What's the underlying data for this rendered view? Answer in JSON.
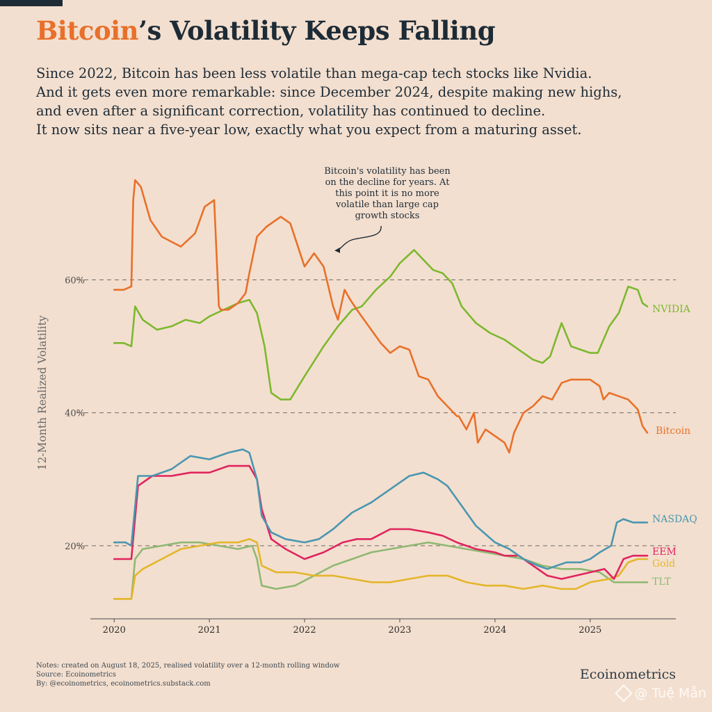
{
  "header": {
    "title_accent": "Bitcoin",
    "title_rest": "’s Volatility Keeps Falling",
    "subtitle_lines": [
      "Since 2022, Bitcoin has been less volatile than mega-cap tech stocks like Nvidia.",
      "And it gets even more remarkable: since December 2024, despite making new highs,",
      "and even after a significant correction, volatility has continued to decline.",
      "It now sits near a five-year low, exactly what you expect from a maturing asset."
    ]
  },
  "colors": {
    "background": "#f3dfcf",
    "text": "#1d2b36",
    "bitcoin": "#e8702a",
    "nvidia": "#7cb82f",
    "nasdaq": "#4a96b0",
    "eem": "#e0245e",
    "gold": "#e3b62a",
    "tlt": "#8fb873"
  },
  "chart_data": {
    "type": "line",
    "title": "",
    "xlabel": "",
    "ylabel": "12-Month Realized Volatility",
    "x_ticks": [
      "2020",
      "2021",
      "2022",
      "2023",
      "2024",
      "2025"
    ],
    "y_ticks": [
      "20%",
      "40%",
      "60%"
    ],
    "y_tick_values": [
      20,
      40,
      60
    ],
    "xlim": [
      2019.75,
      2025.9
    ],
    "ylim": [
      9,
      77
    ],
    "grid": "dashed horizontal at 20%, 40%, 60%",
    "annotation": {
      "lines": [
        "Bitcoin's volatility has been",
        "on the decline for years. At",
        "this point it is no more",
        "volatile than large cap",
        "growth stocks"
      ],
      "points_to": {
        "x": 2022.3,
        "y": 64
      }
    },
    "series": [
      {
        "name": "Bitcoin",
        "color_key": "bitcoin",
        "x": [
          2020.0,
          2020.1,
          2020.18,
          2020.2,
          2020.22,
          2020.28,
          2020.38,
          2020.5,
          2020.7,
          2020.85,
          2020.95,
          2021.05,
          2021.1,
          2021.12,
          2021.2,
          2021.3,
          2021.38,
          2021.42,
          2021.5,
          2021.6,
          2021.75,
          2021.85,
          2022.0,
          2022.1,
          2022.2,
          2022.3,
          2022.35,
          2022.42,
          2022.48,
          2022.55,
          2022.65,
          2022.8,
          2022.9,
          2023.0,
          2023.1,
          2023.2,
          2023.3,
          2023.4,
          2023.5,
          2023.6,
          2023.62,
          2023.7,
          2023.78,
          2023.82,
          2023.9,
          2024.0,
          2024.1,
          2024.15,
          2024.2,
          2024.3,
          2024.4,
          2024.5,
          2024.6,
          2024.7,
          2024.8,
          2024.9,
          2025.0,
          2025.1,
          2025.14,
          2025.2,
          2025.3,
          2025.4,
          2025.5,
          2025.55,
          2025.6
        ],
        "y": [
          58.5,
          58.5,
          59,
          72,
          75,
          74,
          69,
          66.5,
          65,
          67,
          71,
          72,
          56,
          55.5,
          55.5,
          56.5,
          58,
          61,
          66.5,
          68,
          69.5,
          68.5,
          62,
          64,
          62,
          56,
          54,
          58.5,
          57,
          55.5,
          53.5,
          50.5,
          49,
          50,
          49.5,
          45.5,
          45,
          42.5,
          41,
          39.5,
          39.5,
          37.5,
          40,
          35.5,
          37.5,
          36.5,
          35.5,
          34,
          37,
          40,
          41,
          42.5,
          42,
          44.5,
          45,
          45,
          45,
          44,
          42,
          43,
          42.5,
          42,
          40.5,
          38,
          37
        ]
      },
      {
        "name": "NVIDIA",
        "color_key": "nvidia",
        "x": [
          2020.0,
          2020.1,
          2020.18,
          2020.22,
          2020.3,
          2020.45,
          2020.6,
          2020.75,
          2020.9,
          2021.0,
          2021.15,
          2021.3,
          2021.42,
          2021.5,
          2021.58,
          2021.65,
          2021.75,
          2021.85,
          2022.0,
          2022.2,
          2022.35,
          2022.5,
          2022.6,
          2022.75,
          2022.9,
          2023.0,
          2023.15,
          2023.25,
          2023.35,
          2023.45,
          2023.55,
          2023.65,
          2023.8,
          2023.95,
          2024.1,
          2024.25,
          2024.4,
          2024.5,
          2024.58,
          2024.65,
          2024.7,
          2024.8,
          2025.0,
          2025.08,
          2025.2,
          2025.3,
          2025.4,
          2025.5,
          2025.55,
          2025.6
        ],
        "y": [
          50.5,
          50.5,
          50,
          56,
          54,
          52.5,
          53,
          54,
          53.5,
          54.5,
          55.5,
          56.5,
          57,
          55,
          50,
          43,
          42,
          42,
          45.5,
          50,
          53,
          55.5,
          56,
          58.5,
          60.5,
          62.5,
          64.5,
          63,
          61.5,
          61,
          59.5,
          56,
          53.5,
          52,
          51,
          49.5,
          48,
          47.5,
          48.5,
          51.5,
          53.5,
          50,
          49,
          49,
          53,
          55,
          59,
          58.5,
          56.5,
          56
        ]
      },
      {
        "name": "NASDAQ",
        "color_key": "nasdaq",
        "x": [
          2020.0,
          2020.12,
          2020.18,
          2020.25,
          2020.4,
          2020.6,
          2020.8,
          2021.0,
          2021.2,
          2021.35,
          2021.42,
          2021.5,
          2021.55,
          2021.65,
          2021.8,
          2022.0,
          2022.15,
          2022.3,
          2022.5,
          2022.7,
          2022.9,
          2023.1,
          2023.25,
          2023.4,
          2023.5,
          2023.65,
          2023.8,
          2024.0,
          2024.15,
          2024.3,
          2024.45,
          2024.55,
          2024.65,
          2024.75,
          2024.9,
          2025.0,
          2025.1,
          2025.22,
          2025.28,
          2025.35,
          2025.45,
          2025.6
        ],
        "y": [
          20.5,
          20.5,
          20,
          30.5,
          30.5,
          31.5,
          33.5,
          33,
          34,
          34.5,
          34,
          30,
          24.5,
          22,
          21,
          20.5,
          21,
          22.5,
          25,
          26.5,
          28.5,
          30.5,
          31,
          30,
          29,
          26,
          23,
          20.5,
          19.5,
          18,
          17,
          16.5,
          17,
          17.5,
          17.5,
          18,
          19,
          20,
          23.5,
          24,
          23.5,
          23.5
        ]
      },
      {
        "name": "EEM",
        "color_key": "eem",
        "x": [
          2020.0,
          2020.12,
          2020.18,
          2020.25,
          2020.4,
          2020.6,
          2020.8,
          2021.0,
          2021.2,
          2021.35,
          2021.42,
          2021.5,
          2021.55,
          2021.65,
          2021.8,
          2022.0,
          2022.2,
          2022.4,
          2022.55,
          2022.7,
          2022.9,
          2023.1,
          2023.3,
          2023.45,
          2023.6,
          2023.8,
          2024.0,
          2024.1,
          2024.25,
          2024.4,
          2024.55,
          2024.7,
          2024.85,
          2025.0,
          2025.15,
          2025.25,
          2025.35,
          2025.45,
          2025.6
        ],
        "y": [
          18,
          18,
          18,
          29,
          30.5,
          30.5,
          31,
          31,
          32,
          32,
          32,
          30,
          25.5,
          21,
          19.5,
          18,
          19,
          20.5,
          21,
          21,
          22.5,
          22.5,
          22,
          21.5,
          20.5,
          19.5,
          19,
          18.5,
          18.5,
          17,
          15.5,
          15,
          15.5,
          16,
          16.5,
          15,
          18,
          18.5,
          18.5
        ]
      },
      {
        "name": "Gold",
        "color_key": "gold",
        "x": [
          2020.0,
          2020.12,
          2020.18,
          2020.22,
          2020.3,
          2020.5,
          2020.7,
          2020.9,
          2021.1,
          2021.3,
          2021.42,
          2021.5,
          2021.55,
          2021.7,
          2021.9,
          2022.1,
          2022.3,
          2022.5,
          2022.7,
          2022.9,
          2023.1,
          2023.3,
          2023.5,
          2023.7,
          2023.9,
          2024.1,
          2024.3,
          2024.5,
          2024.7,
          2024.85,
          2025.0,
          2025.2,
          2025.3,
          2025.4,
          2025.5,
          2025.6
        ],
        "y": [
          12,
          12,
          12,
          15.5,
          16.5,
          18,
          19.5,
          20,
          20.5,
          20.5,
          21,
          20.5,
          17,
          16,
          16,
          15.5,
          15.5,
          15,
          14.5,
          14.5,
          15,
          15.5,
          15.5,
          14.5,
          14,
          14,
          13.5,
          14,
          13.5,
          13.5,
          14.5,
          15,
          15.5,
          17.5,
          18,
          18
        ]
      },
      {
        "name": "TLT",
        "color_key": "tlt",
        "x": [
          2020.0,
          2020.12,
          2020.18,
          2020.22,
          2020.3,
          2020.5,
          2020.7,
          2020.9,
          2021.1,
          2021.3,
          2021.45,
          2021.5,
          2021.55,
          2021.7,
          2021.9,
          2022.1,
          2022.3,
          2022.5,
          2022.7,
          2022.9,
          2023.1,
          2023.3,
          2023.5,
          2023.7,
          2023.9,
          2024.1,
          2024.3,
          2024.5,
          2024.7,
          2024.9,
          2025.1,
          2025.25,
          2025.4,
          2025.5,
          2025.6
        ],
        "y": [
          12,
          12,
          12,
          18,
          19.5,
          20,
          20.5,
          20.5,
          20,
          19.5,
          20,
          18,
          14,
          13.5,
          14,
          15.5,
          17,
          18,
          19,
          19.5,
          20,
          20.5,
          20,
          19.5,
          19,
          18.5,
          18,
          17,
          16.5,
          16.5,
          16,
          14.5,
          14.5,
          14.5,
          14.5
        ]
      }
    ]
  },
  "footer": {
    "notes": "Notes: created on August 18, 2025, realised volatility over a 12-month rolling window",
    "source": "Source: Ecoinometrics",
    "by": "By: @ecoinometrics, ecoinometrics.substack.com",
    "brand": "Ecoinometrics",
    "watermark": "@ Tuệ Mẫn"
  }
}
